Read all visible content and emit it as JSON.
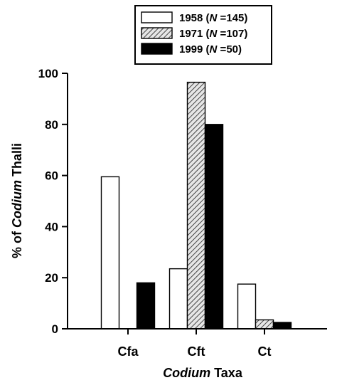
{
  "chart_data": {
    "type": "bar",
    "xlabel": "Codium Taxa",
    "xlabel_parts": [
      {
        "text": "Codium",
        "italic": true
      },
      {
        "text": " Taxa",
        "italic": false
      }
    ],
    "ylabel": "% of Codium Thalli",
    "ylabel_parts": [
      {
        "text": "% of ",
        "italic": false
      },
      {
        "text": "Codium",
        "italic": true
      },
      {
        "text": " Thalli",
        "italic": false
      }
    ],
    "ylim": [
      0,
      100
    ],
    "yticks": [
      "0",
      "20",
      "40",
      "60",
      "80",
      "100"
    ],
    "categories": [
      "Cfa",
      "Cft",
      "Ct"
    ],
    "grid": false,
    "legend_position": "top",
    "series": [
      {
        "name": "1958 (N =145)",
        "name_parts": [
          {
            "text": "1958 (",
            "italic": false
          },
          {
            "text": "N",
            "italic": true
          },
          {
            "text": " =145)",
            "italic": false
          }
        ],
        "fill": "white",
        "color": "#ffffff",
        "values": [
          59.5,
          23.5,
          17.5
        ]
      },
      {
        "name": "1971 (N =107)",
        "name_parts": [
          {
            "text": "1971 (",
            "italic": false
          },
          {
            "text": "N",
            "italic": true
          },
          {
            "text": " =107)",
            "italic": false
          }
        ],
        "fill": "hatched",
        "color": "#9a9a9a",
        "values": [
          0,
          96.5,
          3.5
        ]
      },
      {
        "name": "1999 (N =50)",
        "name_parts": [
          {
            "text": "1999 (",
            "italic": false
          },
          {
            "text": "N",
            "italic": true
          },
          {
            "text": " =50)",
            "italic": false
          }
        ],
        "fill": "black",
        "color": "#000000",
        "values": [
          18,
          80,
          2.5
        ]
      }
    ]
  }
}
